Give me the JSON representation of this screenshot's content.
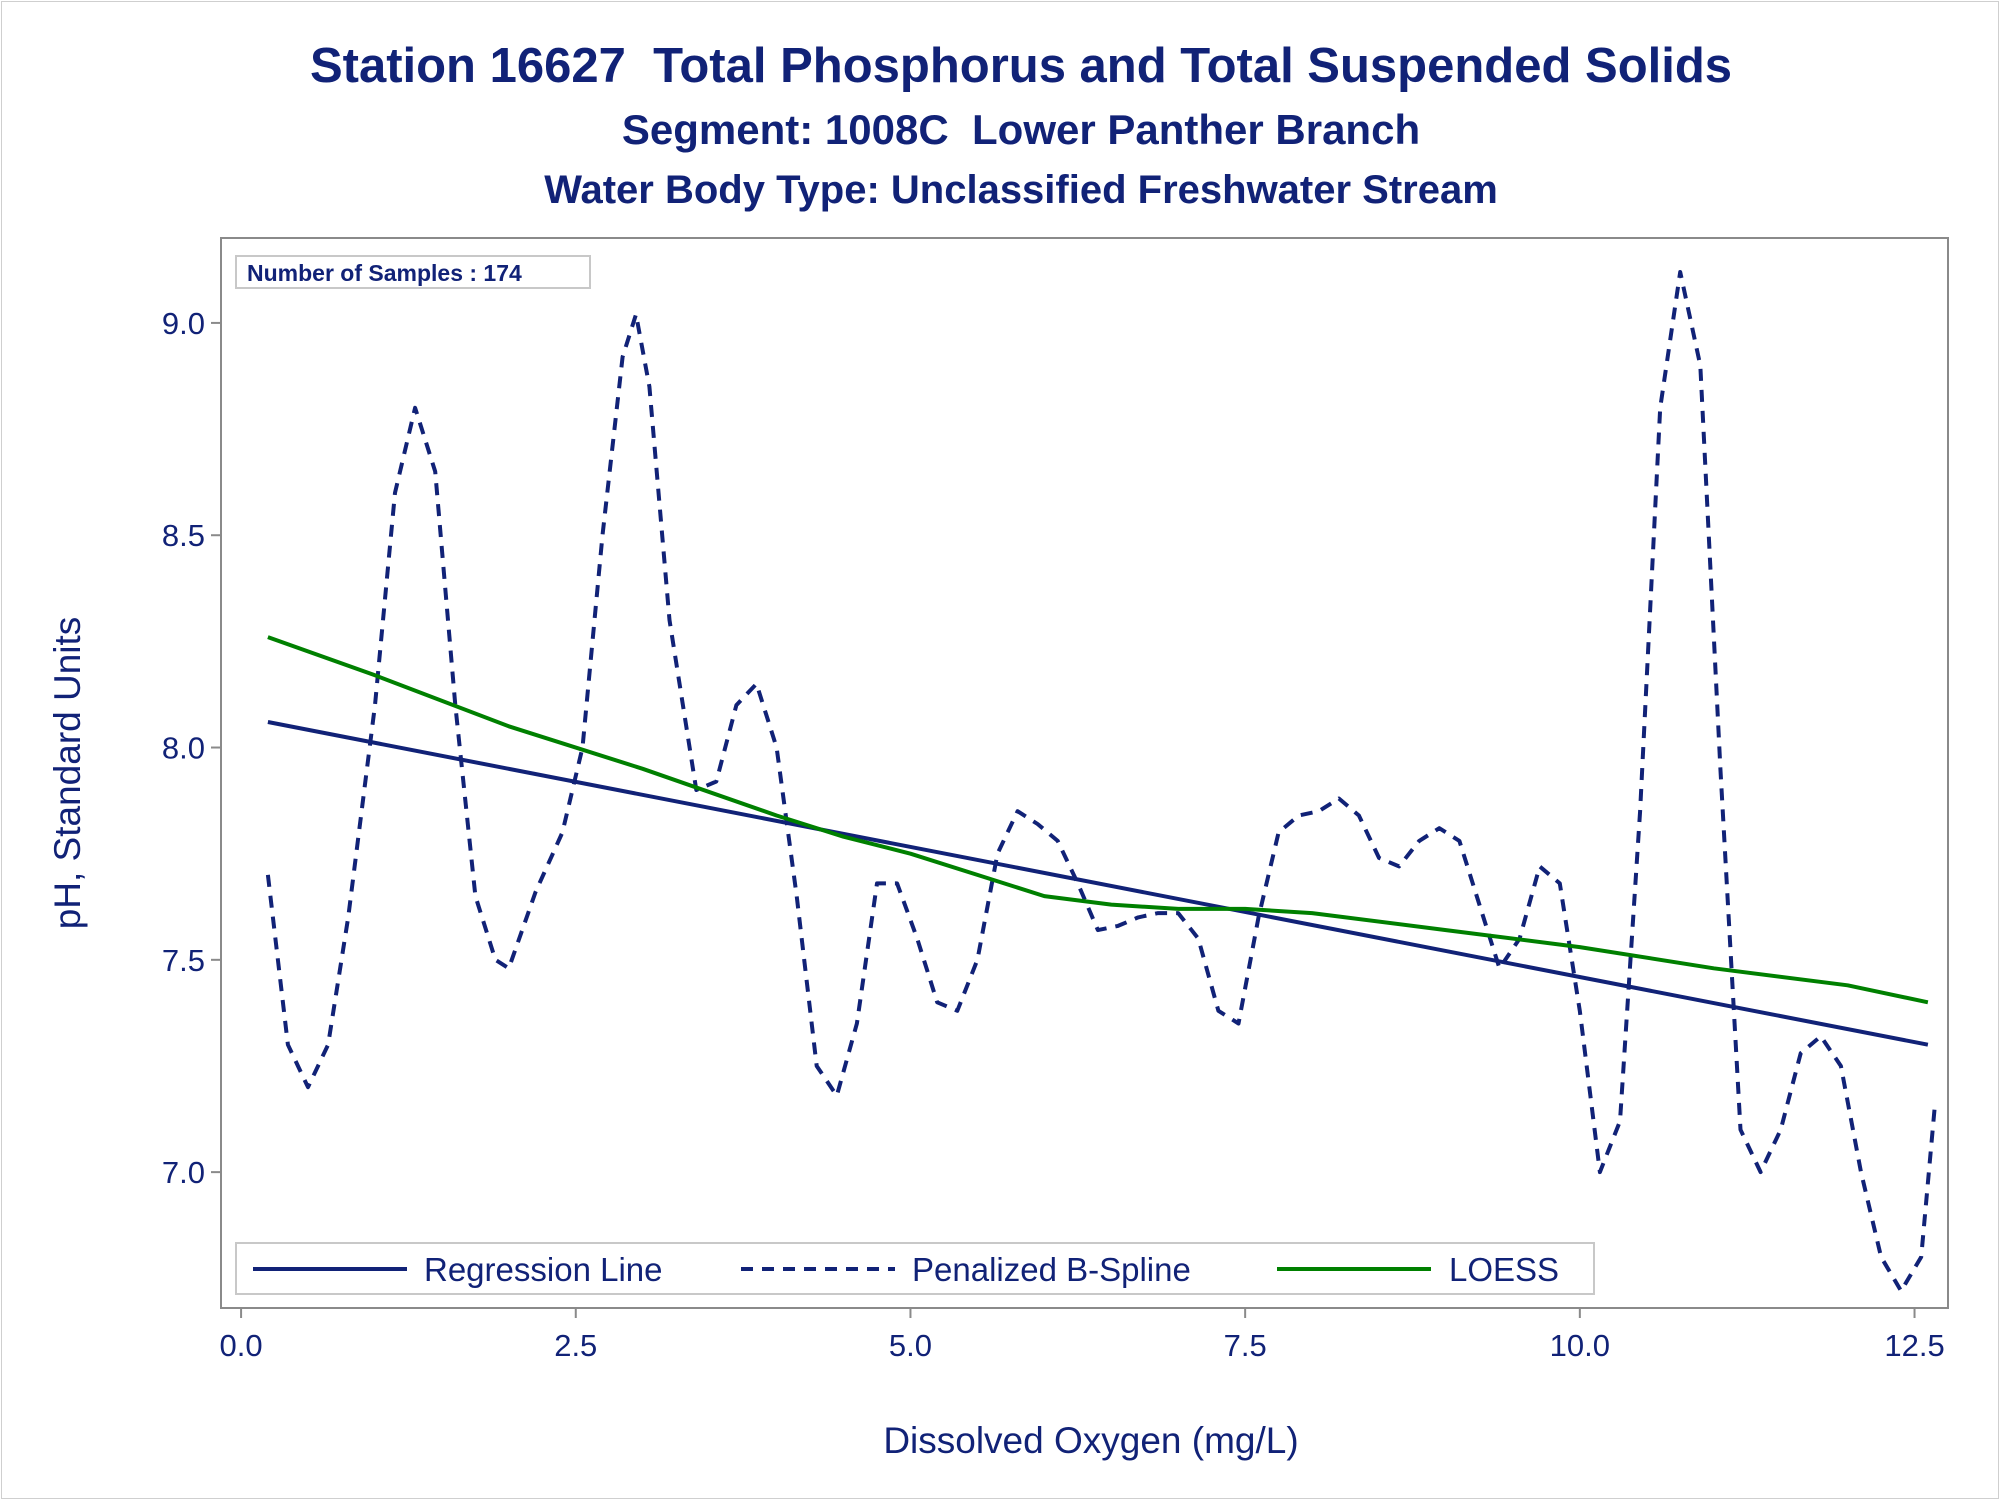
{
  "chart_data": {
    "type": "line",
    "title": "Station 16627  Total Phosphorus and Total Suspended Solids",
    "subtitle": "Segment: 1008C  Lower Panther Branch",
    "subtitle2": "Water Body Type: Unclassified Freshwater Stream",
    "xlabel": "Dissolved Oxygen (mg/L)",
    "ylabel": "pH, Standard Units",
    "xlim": [
      -0.15,
      12.75
    ],
    "ylim": [
      6.68,
      9.2
    ],
    "x_ticks": [
      "0.0",
      "2.5",
      "5.0",
      "7.5",
      "10.0",
      "12.5"
    ],
    "y_ticks": [
      "7.0",
      "7.5",
      "8.0",
      "8.5",
      "9.0"
    ],
    "annotation": "Number of Samples : 174",
    "legend_position": "bottom-inside",
    "series": [
      {
        "name": "Regression Line",
        "style": "solid",
        "color": "#112277",
        "x": [
          0.2,
          12.6
        ],
        "y": [
          8.06,
          7.3
        ]
      },
      {
        "name": "Penalized B-Spline",
        "style": "dashed",
        "color": "#112277",
        "x": [
          0.2,
          0.35,
          0.5,
          0.65,
          0.8,
          1.0,
          1.15,
          1.3,
          1.45,
          1.6,
          1.75,
          1.9,
          2.0,
          2.2,
          2.4,
          2.55,
          2.7,
          2.85,
          2.95,
          3.05,
          3.2,
          3.4,
          3.55,
          3.7,
          3.85,
          4.0,
          4.15,
          4.3,
          4.45,
          4.6,
          4.75,
          4.9,
          5.05,
          5.2,
          5.35,
          5.5,
          5.65,
          5.8,
          5.95,
          6.1,
          6.25,
          6.4,
          6.55,
          6.7,
          6.85,
          7.0,
          7.15,
          7.3,
          7.45,
          7.6,
          7.75,
          7.9,
          8.05,
          8.2,
          8.35,
          8.5,
          8.65,
          8.8,
          8.95,
          9.1,
          9.25,
          9.4,
          9.55,
          9.7,
          9.85,
          10.0,
          10.15,
          10.3,
          10.45,
          10.6,
          10.75,
          10.9,
          11.05,
          11.2,
          11.35,
          11.5,
          11.65,
          11.8,
          11.95,
          12.1,
          12.25,
          12.4,
          12.55,
          12.65
        ],
        "y": [
          7.7,
          7.3,
          7.2,
          7.3,
          7.6,
          8.1,
          8.6,
          8.8,
          8.65,
          8.1,
          7.65,
          7.5,
          7.48,
          7.66,
          7.8,
          8.0,
          8.5,
          8.92,
          9.02,
          8.85,
          8.3,
          7.9,
          7.92,
          8.1,
          8.15,
          8.0,
          7.65,
          7.25,
          7.18,
          7.35,
          7.68,
          7.68,
          7.55,
          7.4,
          7.38,
          7.5,
          7.75,
          7.85,
          7.82,
          7.78,
          7.68,
          7.57,
          7.58,
          7.6,
          7.61,
          7.61,
          7.55,
          7.38,
          7.35,
          7.6,
          7.8,
          7.84,
          7.85,
          7.88,
          7.84,
          7.74,
          7.72,
          7.78,
          7.81,
          7.78,
          7.63,
          7.48,
          7.55,
          7.72,
          7.68,
          7.38,
          7.0,
          7.12,
          7.85,
          8.8,
          9.12,
          8.9,
          7.95,
          7.1,
          7.0,
          7.1,
          7.28,
          7.32,
          7.25,
          7.0,
          6.8,
          6.72,
          6.8,
          7.15
        ]
      },
      {
        "name": "LOESS",
        "style": "solid",
        "color": "#008000",
        "x": [
          0.2,
          1.0,
          2.0,
          3.0,
          4.0,
          4.5,
          5.0,
          5.5,
          6.0,
          6.5,
          7.0,
          7.5,
          8.0,
          9.0,
          10.0,
          11.0,
          12.0,
          12.6
        ],
        "y": [
          8.26,
          8.17,
          8.05,
          7.95,
          7.84,
          7.79,
          7.75,
          7.7,
          7.65,
          7.63,
          7.62,
          7.62,
          7.61,
          7.57,
          7.53,
          7.48,
          7.44,
          7.4
        ]
      }
    ]
  }
}
